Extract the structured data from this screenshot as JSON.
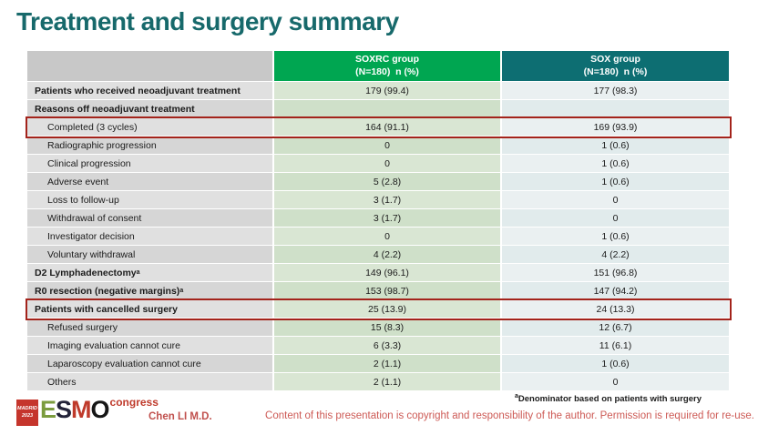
{
  "slide": {
    "title": "Treatment and surgery summary",
    "footnote_sup": "a",
    "footnote": "Denominator based on patients with surgery",
    "author": "Chen LI M.D.",
    "copyright": "Content of this presentation is copyright and responsibility of the author. Permission is required for re-use."
  },
  "logo": {
    "city": "MADRID",
    "year": "2023",
    "l1": "E",
    "l2": "S",
    "l3": "M",
    "l4": "O",
    "congress": "congress"
  },
  "colors": {
    "title_teal": "#17696b",
    "header_green": "#00a651",
    "header_teal": "#0d6e72",
    "highlight_red": "#a3231b",
    "footer_red": "#c0504d"
  },
  "table": {
    "columns": [
      {
        "line1": "",
        "line2": ""
      },
      {
        "line1": "SOXRC group",
        "line2": "(N=180)  n (%)"
      },
      {
        "line1": "SOX group",
        "line2": "(N=180)  n (%)"
      }
    ],
    "rows": [
      {
        "label": "Patients who received neoadjuvant treatment",
        "bold": true,
        "indent": false,
        "soxrc": "179 (99.4)",
        "sox": "177 (98.3)",
        "highlight": false
      },
      {
        "label": "Reasons off neoadjuvant treatment",
        "bold": true,
        "indent": false,
        "soxrc": "",
        "sox": "",
        "highlight": false
      },
      {
        "label": "Completed (3 cycles)",
        "bold": false,
        "indent": true,
        "soxrc": "164 (91.1)",
        "sox": "169 (93.9)",
        "highlight": true
      },
      {
        "label": "Radiographic progression",
        "bold": false,
        "indent": true,
        "soxrc": "0",
        "sox": "1 (0.6)",
        "highlight": false
      },
      {
        "label": "Clinical progression",
        "bold": false,
        "indent": true,
        "soxrc": "0",
        "sox": "1 (0.6)",
        "highlight": false
      },
      {
        "label": "Adverse event",
        "bold": false,
        "indent": true,
        "soxrc": "5 (2.8)",
        "sox": "1 (0.6)",
        "highlight": false
      },
      {
        "label": "Loss to follow-up",
        "bold": false,
        "indent": true,
        "soxrc": "3 (1.7)",
        "sox": "0",
        "highlight": false
      },
      {
        "label": "Withdrawal of consent",
        "bold": false,
        "indent": true,
        "soxrc": "3 (1.7)",
        "sox": "0",
        "highlight": false
      },
      {
        "label": "Investigator decision",
        "bold": false,
        "indent": true,
        "soxrc": "0",
        "sox": "1 (0.6)",
        "highlight": false
      },
      {
        "label": "Voluntary withdrawal",
        "bold": false,
        "indent": true,
        "soxrc": "4 (2.2)",
        "sox": "4 (2.2)",
        "highlight": false
      },
      {
        "label": "D2 Lymphadenectomy",
        "sup": "a",
        "bold": true,
        "indent": false,
        "soxrc": "149 (96.1)",
        "sox": "151 (96.8)",
        "highlight": false
      },
      {
        "label": "R0 resection (negative margins)",
        "sup": "a",
        "bold": true,
        "indent": false,
        "soxrc": "153 (98.7)",
        "sox": "147 (94.2)",
        "highlight": false
      },
      {
        "label": "Patients with cancelled surgery",
        "bold": true,
        "indent": false,
        "soxrc": "25 (13.9)",
        "sox": "24 (13.3)",
        "highlight": true
      },
      {
        "label": "Refused surgery",
        "bold": false,
        "indent": true,
        "soxrc": "15 (8.3)",
        "sox": "12 (6.7)",
        "highlight": false
      },
      {
        "label": "Imaging evaluation cannot cure",
        "bold": false,
        "indent": true,
        "soxrc": "6 (3.3)",
        "sox": "11 (6.1)",
        "highlight": false
      },
      {
        "label": "Laparoscopy evaluation cannot cure",
        "bold": false,
        "indent": true,
        "soxrc": "2 (1.1)",
        "sox": "1 (0.6)",
        "highlight": false
      },
      {
        "label": "Others",
        "bold": false,
        "indent": true,
        "soxrc": "2 (1.1)",
        "sox": "0",
        "highlight": false
      }
    ]
  }
}
